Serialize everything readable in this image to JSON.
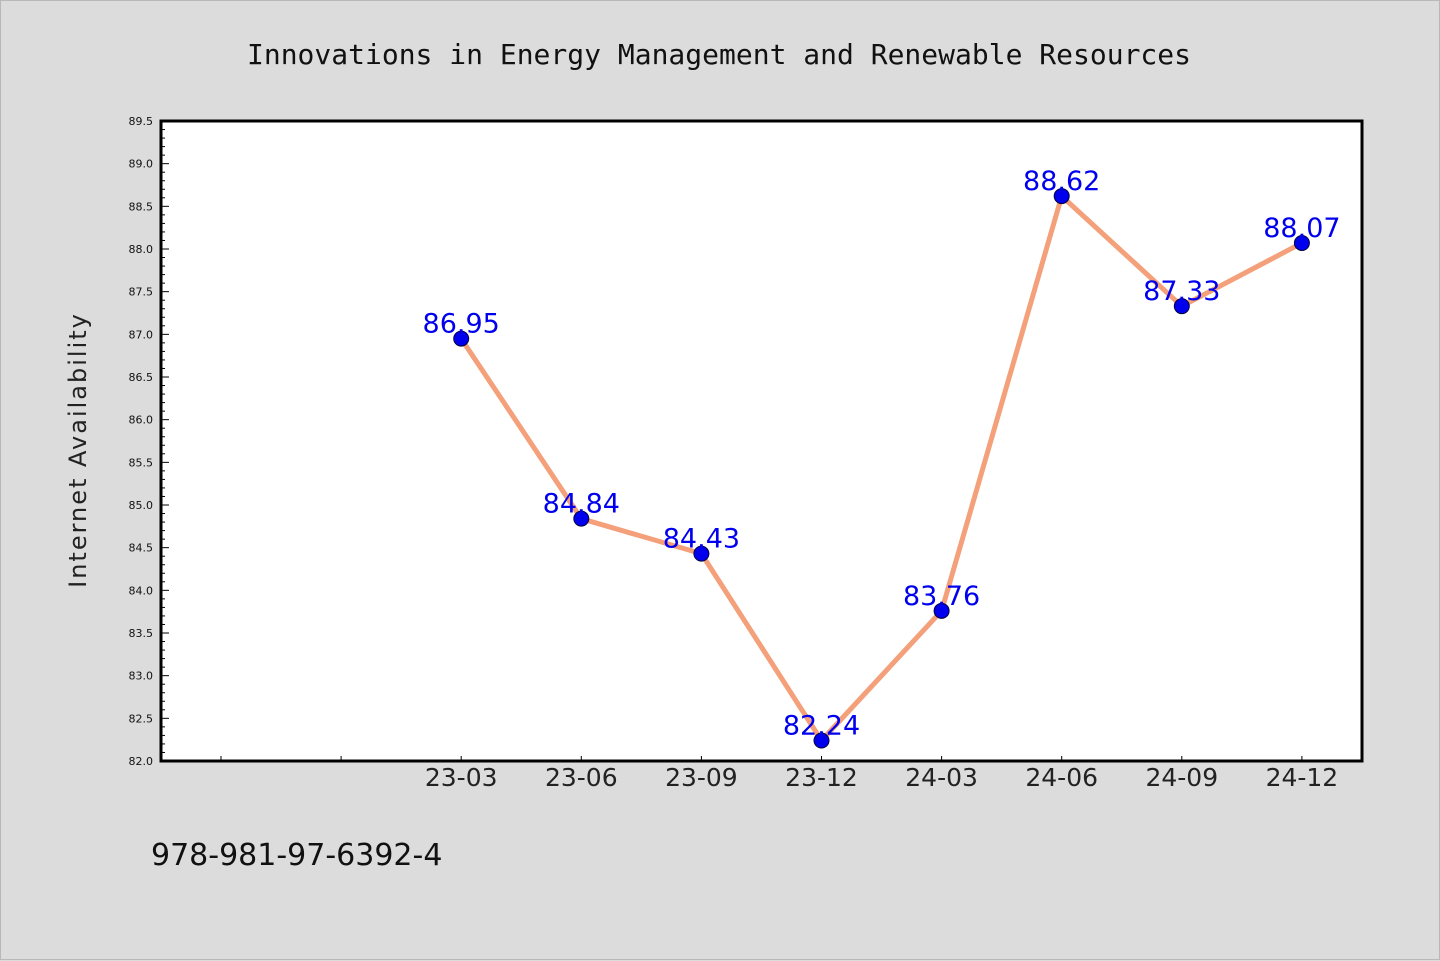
{
  "chart_data": {
    "type": "line",
    "title": "Innovations in Energy Management and Renewable Resources",
    "xlabel": "",
    "ylabel": "Internet Availability",
    "categories": [
      "",
      "",
      "23-03",
      "23-06",
      "23-09",
      "23-12",
      "24-03",
      "24-06",
      "24-09",
      "24-12"
    ],
    "series": [
      {
        "values": [
          null,
          null,
          86.95,
          84.84,
          84.43,
          82.24,
          83.76,
          88.62,
          87.33,
          88.07
        ]
      }
    ],
    "data_labels": [
      "",
      "",
      "86.95",
      "84.84",
      "84.43",
      "82.24",
      "83.76",
      "88.62",
      "87.33",
      "88.07"
    ],
    "ylim": [
      82.0,
      89.5
    ],
    "yticks": [
      "82.0",
      "82.5",
      "83.0",
      "83.5",
      "84.0",
      "84.5",
      "85.0",
      "85.5",
      "86.0",
      "86.5",
      "87.0",
      "87.5",
      "88.0",
      "88.5",
      "89.0",
      "89.5"
    ],
    "grid": false,
    "legend": "none",
    "colors": {
      "line": "#f4a07a",
      "marker": "#0000ee",
      "marker_edge": "#00003a",
      "data_label": "#0000ee",
      "background": "#dcdcdc",
      "plot_background": "#ffffff"
    }
  },
  "footer": {
    "text": "978-981-97-6392-4"
  }
}
